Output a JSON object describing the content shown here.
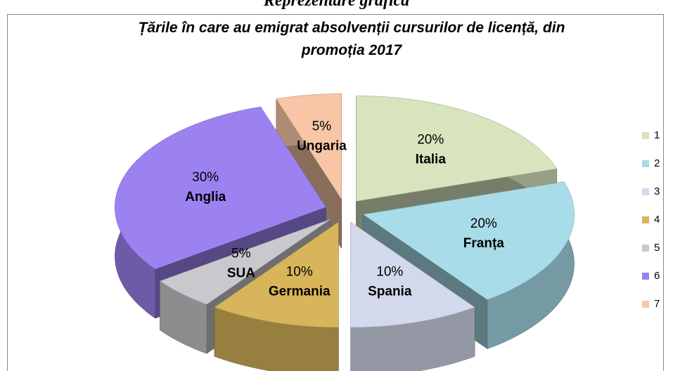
{
  "heading": "Reprezentare grafică",
  "chart_data": {
    "type": "pie",
    "title": "Țările în care au emigrat absolvenții cursurilor de licență, din promoția 2017",
    "categories": [
      "1",
      "2",
      "3",
      "4",
      "5",
      "6",
      "7"
    ],
    "labels": [
      "Italia",
      "Franța",
      "Spania",
      "Germania",
      "SUA",
      "Anglia",
      "Ungaria"
    ],
    "values": [
      20,
      20,
      10,
      10,
      5,
      30,
      5
    ],
    "value_labels": [
      "20%",
      "20%",
      "10%",
      "10%",
      "5%",
      "30%",
      "5%"
    ],
    "colors": [
      "#d7e4bd",
      "#a9dce9",
      "#d3d9ec",
      "#d8b55a",
      "#c9c9cd",
      "#9c82f0",
      "#f8c6a6"
    ],
    "legend": "right"
  }
}
